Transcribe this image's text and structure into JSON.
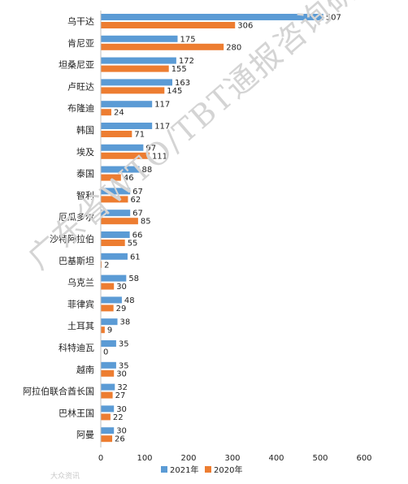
{
  "chart_data": {
    "type": "bar",
    "orientation": "horizontal",
    "categories": [
      "乌干达",
      "肯尼亚",
      "坦桑尼亚",
      "卢旺达",
      "布隆迪",
      "韩国",
      "埃及",
      "泰国",
      "智利",
      "厄瓜多尔",
      "沙特阿拉伯",
      "巴基斯坦",
      "乌克兰",
      "菲律宾",
      "土耳其",
      "科特迪瓦",
      "越南",
      "阿拉伯联合酋长国",
      "巴林王国",
      "阿曼"
    ],
    "series": [
      {
        "name": "2021年",
        "color": "#5b9bd5",
        "values": [
          507,
          175,
          172,
          163,
          117,
          117,
          97,
          88,
          67,
          67,
          66,
          61,
          58,
          48,
          38,
          35,
          35,
          32,
          30,
          30
        ]
      },
      {
        "name": "2020年",
        "color": "#ed7d31",
        "values": [
          306,
          280,
          155,
          145,
          24,
          71,
          111,
          46,
          62,
          85,
          55,
          2,
          30,
          29,
          9,
          0,
          30,
          27,
          22,
          26
        ]
      }
    ],
    "xlim": [
      0,
      600
    ],
    "xticks": [
      "0",
      "100",
      "200",
      "300",
      "400",
      "500",
      "600"
    ],
    "grid": false,
    "legend": "bottom-center"
  },
  "watermark": "广东省WTO/TBT通报咨询研究中心",
  "source_logo": "大众资讯"
}
